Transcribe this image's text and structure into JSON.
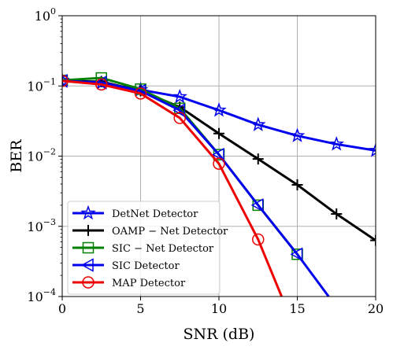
{
  "chart_data": {
    "type": "line",
    "title": "",
    "xlabel": "SNR (dB)",
    "ylabel": "BER",
    "x_scale": "linear",
    "y_scale": "log",
    "xlim": [
      0,
      20
    ],
    "ylim": [
      0.0001,
      1
    ],
    "grid": true,
    "legend_position": "bottom-left",
    "x_ticks": [
      {
        "value": 0,
        "label": "0"
      },
      {
        "value": 5,
        "label": "5"
      },
      {
        "value": 10,
        "label": "10"
      },
      {
        "value": 15,
        "label": "15"
      },
      {
        "value": 20,
        "label": "20"
      }
    ],
    "y_ticks": [
      {
        "value": 1,
        "base": "10",
        "exp": "0"
      },
      {
        "value": 0.1,
        "base": "10",
        "exp": "−1"
      },
      {
        "value": 0.01,
        "base": "10",
        "exp": "−2"
      },
      {
        "value": 0.001,
        "base": "10",
        "exp": "−3"
      },
      {
        "value": 0.0001,
        "base": "10",
        "exp": "−4"
      }
    ],
    "series": [
      {
        "name": "DetNet Detector",
        "color": "#0000ee",
        "marker": "star",
        "marker_color": "#0000ee",
        "points": [
          [
            0,
            0.12
          ],
          [
            2.5,
            0.11
          ],
          [
            5,
            0.088
          ],
          [
            7.5,
            0.07
          ],
          [
            10,
            0.045
          ],
          [
            12.5,
            0.028
          ],
          [
            15,
            0.0195
          ],
          [
            17.5,
            0.0148
          ],
          [
            20,
            0.012
          ]
        ]
      },
      {
        "name": "OAMP − Net Detector",
        "color": "#000000",
        "marker": "plus",
        "marker_color": "#000000",
        "points": [
          [
            0,
            0.118
          ],
          [
            2.5,
            0.115
          ],
          [
            5,
            0.085
          ],
          [
            7.5,
            0.05
          ],
          [
            10,
            0.021
          ],
          [
            12.5,
            0.0091
          ],
          [
            15,
            0.0039
          ],
          [
            17.5,
            0.0015
          ],
          [
            20,
            0.00063
          ]
        ]
      },
      {
        "name": "SIC − Net Detector",
        "color": "#008000",
        "marker": "square",
        "marker_color": "#008000",
        "points": [
          [
            0,
            0.12
          ],
          [
            2.5,
            0.13
          ],
          [
            5,
            0.09
          ],
          [
            7.5,
            0.048
          ],
          [
            10,
            0.0105
          ],
          [
            12.5,
            0.002
          ],
          [
            15,
            0.0004
          ]
        ]
      },
      {
        "name": "SIC Detector",
        "color": "#0000ee",
        "marker": "triangle-left",
        "marker_color": "#0000ee",
        "points": [
          [
            0,
            0.118
          ],
          [
            2.5,
            0.112
          ],
          [
            5,
            0.085
          ],
          [
            7.5,
            0.045
          ],
          [
            10,
            0.0105
          ],
          [
            12.5,
            0.002
          ],
          [
            15,
            0.0004
          ],
          [
            17,
            0.0001
          ]
        ]
      },
      {
        "name": "MAP Detector",
        "color": "#ee0000",
        "marker": "circle",
        "marker_color": "#ee0000",
        "points": [
          [
            0,
            0.118
          ],
          [
            2.5,
            0.105
          ],
          [
            5,
            0.078
          ],
          [
            7.5,
            0.035
          ],
          [
            10,
            0.0078
          ],
          [
            12.5,
            0.00065
          ],
          [
            14,
            0.0001
          ]
        ]
      }
    ]
  }
}
